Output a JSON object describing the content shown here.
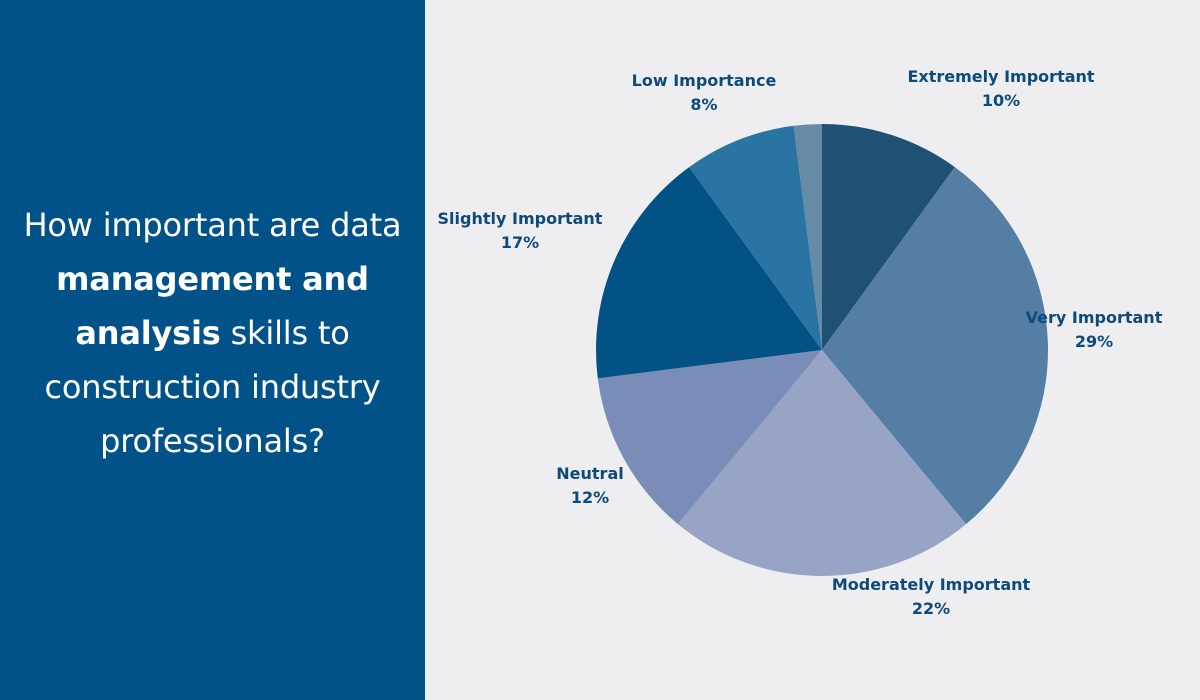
{
  "question": {
    "part1": "How important are data ",
    "bold": "management and analysis",
    "part2": " skills to construction industry professionals?"
  },
  "chart_data": {
    "type": "pie",
    "label_color": "#0d4a7c",
    "slices": [
      {
        "label": "Extremely Important",
        "value": 10,
        "value_label": "10%",
        "color": "#1f5174"
      },
      {
        "label": "Very Important",
        "value": 29,
        "value_label": "29%",
        "color": "#557ea4"
      },
      {
        "label": "Moderately Important",
        "value": 22,
        "value_label": "22%",
        "color": "#97a4c6"
      },
      {
        "label": "Neutral",
        "value": 12,
        "value_label": "12%",
        "color": "#7a8db9"
      },
      {
        "label": "Slightly Important",
        "value": 17,
        "value_label": "17%",
        "color": "#035285"
      },
      {
        "label": "Low Importance",
        "value": 8,
        "value_label": "8%",
        "color": "#2a74a3"
      },
      {
        "label": "",
        "value": 2,
        "value_label": "",
        "color": "#688ba5"
      }
    ]
  }
}
